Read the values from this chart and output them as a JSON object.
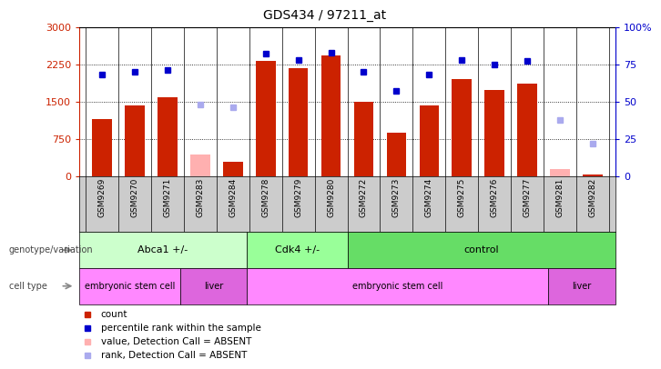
{
  "title": "GDS434 / 97211_at",
  "samples": [
    "GSM9269",
    "GSM9270",
    "GSM9271",
    "GSM9283",
    "GSM9284",
    "GSM9278",
    "GSM9279",
    "GSM9280",
    "GSM9272",
    "GSM9273",
    "GSM9274",
    "GSM9275",
    "GSM9276",
    "GSM9277",
    "GSM9281",
    "GSM9282"
  ],
  "counts": [
    1150,
    1430,
    1580,
    null,
    300,
    2320,
    2180,
    2430,
    1490,
    870,
    1430,
    1950,
    1740,
    1870,
    null,
    30
  ],
  "counts_absent": [
    null,
    null,
    null,
    430,
    null,
    null,
    null,
    null,
    null,
    null,
    null,
    null,
    null,
    null,
    140,
    null
  ],
  "ranks": [
    68,
    70,
    71,
    null,
    null,
    82,
    78,
    83,
    70,
    57,
    68,
    78,
    75,
    77,
    null,
    null
  ],
  "ranks_absent": [
    null,
    null,
    null,
    48,
    46,
    null,
    null,
    null,
    null,
    null,
    null,
    null,
    null,
    null,
    38,
    22
  ],
  "ylim_left": [
    0,
    3000
  ],
  "ylim_right": [
    0,
    100
  ],
  "yticks_left": [
    0,
    750,
    1500,
    2250,
    3000
  ],
  "yticks_right": [
    0,
    25,
    50,
    75,
    100
  ],
  "yticklabels_left": [
    "0",
    "750",
    "1500",
    "2250",
    "3000"
  ],
  "yticklabels_right": [
    "0",
    "25",
    "50",
    "75",
    "100%"
  ],
  "bar_color": "#cc2200",
  "bar_absent_color": "#ffb0b0",
  "rank_color": "#0000cc",
  "rank_absent_color": "#aaaaee",
  "genotype_groups": [
    {
      "label": "Abca1 +/-",
      "start": 0,
      "end": 5,
      "color": "#ccffcc"
    },
    {
      "label": "Cdk4 +/-",
      "start": 5,
      "end": 8,
      "color": "#99ff99"
    },
    {
      "label": "control",
      "start": 8,
      "end": 16,
      "color": "#66dd66"
    }
  ],
  "celltype_groups": [
    {
      "label": "embryonic stem cell",
      "start": 0,
      "end": 3,
      "color": "#ff88ff"
    },
    {
      "label": "liver",
      "start": 3,
      "end": 5,
      "color": "#dd66dd"
    },
    {
      "label": "embryonic stem cell",
      "start": 5,
      "end": 14,
      "color": "#ff88ff"
    },
    {
      "label": "liver",
      "start": 14,
      "end": 16,
      "color": "#dd66dd"
    }
  ],
  "legend_items": [
    {
      "label": "count",
      "color": "#cc2200"
    },
    {
      "label": "percentile rank within the sample",
      "color": "#0000cc"
    },
    {
      "label": "value, Detection Call = ABSENT",
      "color": "#ffb0b0"
    },
    {
      "label": "rank, Detection Call = ABSENT",
      "color": "#aaaaee"
    }
  ],
  "left_axis_color": "#cc2200",
  "right_axis_color": "#0000cc"
}
